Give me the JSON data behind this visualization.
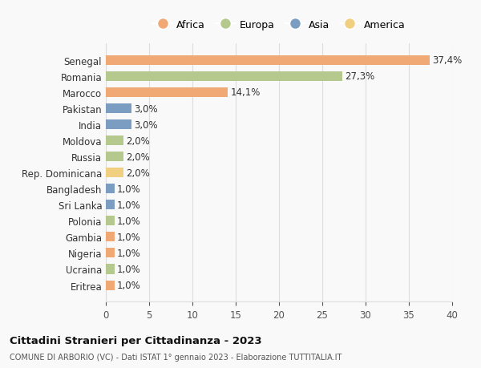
{
  "countries": [
    "Eritrea",
    "Ucraina",
    "Nigeria",
    "Gambia",
    "Polonia",
    "Sri Lanka",
    "Bangladesh",
    "Rep. Dominicana",
    "Russia",
    "Moldova",
    "India",
    "Pakistan",
    "Marocco",
    "Romania",
    "Senegal"
  ],
  "values": [
    1.0,
    1.0,
    1.0,
    1.0,
    1.0,
    1.0,
    1.0,
    2.0,
    2.0,
    2.0,
    3.0,
    3.0,
    14.1,
    27.3,
    37.4
  ],
  "labels": [
    "1,0%",
    "1,0%",
    "1,0%",
    "1,0%",
    "1,0%",
    "1,0%",
    "1,0%",
    "2,0%",
    "2,0%",
    "2,0%",
    "3,0%",
    "3,0%",
    "14,1%",
    "27,3%",
    "37,4%"
  ],
  "continents": [
    "Africa",
    "Europa",
    "Africa",
    "Africa",
    "Europa",
    "Asia",
    "Asia",
    "America",
    "Europa",
    "Europa",
    "Asia",
    "Asia",
    "Africa",
    "Europa",
    "Africa"
  ],
  "continent_colors": {
    "Africa": "#F0A875",
    "Europa": "#B5C98E",
    "Asia": "#7B9DC2",
    "America": "#F0D080"
  },
  "legend_order": [
    "Africa",
    "Europa",
    "Asia",
    "America"
  ],
  "title": "Cittadini Stranieri per Cittadinanza - 2023",
  "subtitle": "COMUNE DI ARBORIO (VC) - Dati ISTAT 1° gennaio 2023 - Elaborazione TUTTITALIA.IT",
  "xlim": [
    0,
    40
  ],
  "xticks": [
    0,
    5,
    10,
    15,
    20,
    25,
    30,
    35,
    40
  ],
  "bg_color": "#f9f9f9",
  "grid_color": "#dddddd",
  "bar_height": 0.6
}
